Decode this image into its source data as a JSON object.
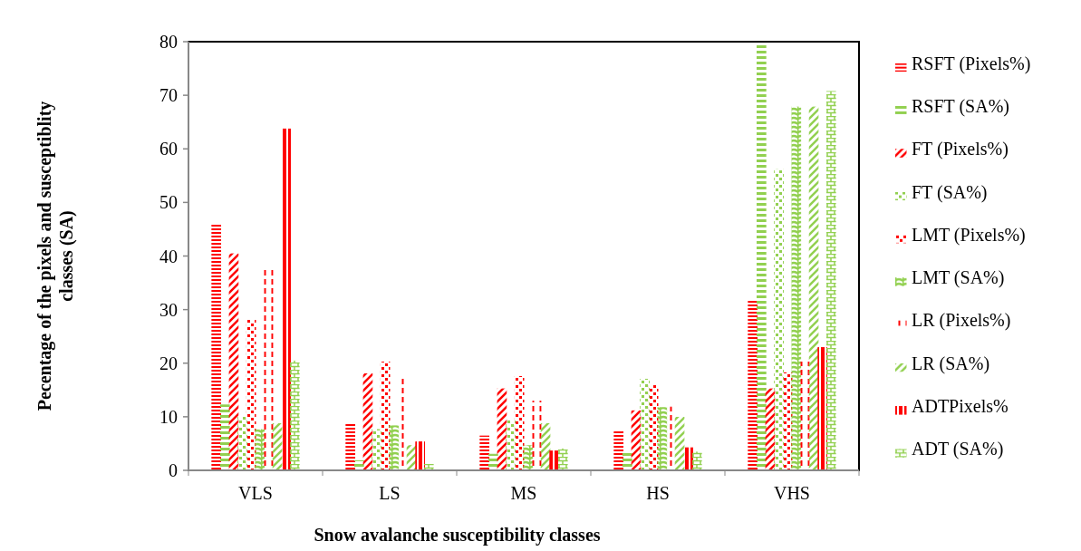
{
  "chart_data": {
    "type": "bar",
    "xlabel": "Snow avalanche susceptibility classes",
    "ylabel": "Pecentage of the pixels and susceptiblity classes (SA)",
    "categories": [
      "VLS",
      "LS",
      "MS",
      "HS",
      "VHS"
    ],
    "ylim": [
      0,
      80
    ],
    "yticks": [
      0,
      10,
      20,
      30,
      40,
      50,
      60,
      70,
      80
    ],
    "grid": false,
    "legend": "right",
    "series": [
      {
        "name": "RSFT (Pixels%)",
        "color": "#ff0000",
        "values": [
          46,
          8.7,
          6.4,
          7.2,
          31.6
        ]
      },
      {
        "name": "RSFT (SA%)",
        "color": "#92d050",
        "values": [
          12.2,
          1.8,
          3,
          3.4,
          79.5
        ]
      },
      {
        "name": "FT (Pixels%)",
        "color": "#ff0000",
        "values": [
          40.4,
          18,
          15.2,
          11.1,
          15.2
        ]
      },
      {
        "name": "FT (SA%)",
        "color": "#92d050",
        "values": [
          9.9,
          7.6,
          9.3,
          17,
          56.1
        ]
      },
      {
        "name": "LMT (Pixels%)",
        "color": "#ff0000",
        "values": [
          28.1,
          20.2,
          17.5,
          15.8,
          18.2
        ]
      },
      {
        "name": "LMT (SA%)",
        "color": "#92d050",
        "values": [
          7.6,
          8.3,
          4.6,
          11.7,
          67.8
        ]
      },
      {
        "name": "LR (Pixels%)",
        "color": "#ff0000",
        "values": [
          37.5,
          17.4,
          12.9,
          11.8,
          20.2
        ]
      },
      {
        "name": "LR (SA%)",
        "color": "#92d050",
        "values": [
          8.7,
          4.6,
          8.7,
          9.9,
          67.8
        ]
      },
      {
        "name": "ADTPixels%",
        "color": "#ff0000",
        "values": [
          63.7,
          5.3,
          3.6,
          4.2,
          22.9
        ]
      },
      {
        "name": "ADT (SA%)",
        "color": "#92d050",
        "values": [
          20.4,
          1.1,
          4.0,
          3.4,
          70.7
        ]
      }
    ]
  }
}
